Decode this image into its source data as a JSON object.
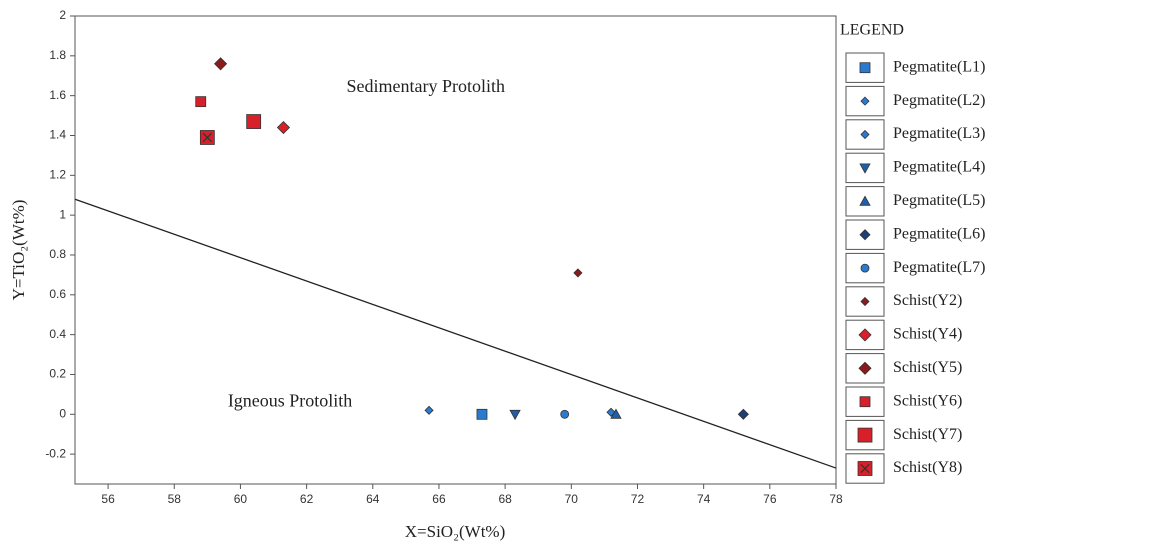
{
  "chart_data": {
    "type": "scatter",
    "xlabel": "X=SiO₂(Wt%)",
    "ylabel": "Y=TiO₂(Wt%)",
    "legend_title": "LEGEND",
    "legend": "right",
    "xlim": [
      55,
      78
    ],
    "xticks": [
      56,
      58,
      60,
      62,
      64,
      66,
      68,
      70,
      72,
      74,
      76,
      78
    ],
    "ylim": [
      -0.35,
      2
    ],
    "yticks": [
      -0.2,
      0,
      0.2,
      0.4,
      0.6,
      0.8,
      1,
      1.2,
      1.4,
      1.6,
      1.8,
      2
    ],
    "annotations": [
      {
        "text": "Sedimentary Protolith",
        "x": 65.6,
        "y": 1.64
      },
      {
        "text": "Igneous Protolith",
        "x": 61.5,
        "y": 0.06
      }
    ],
    "boundary": {
      "x": [
        55,
        78
      ],
      "y": [
        1.08,
        -0.27
      ]
    },
    "series": [
      {
        "name": "Pegmatite(L1)",
        "color": "#2a7bd0",
        "marker": "square",
        "size": 5,
        "x": [
          67.3
        ],
        "y": [
          0.0
        ]
      },
      {
        "name": "Pegmatite(L2)",
        "color": "#2a7bd0",
        "marker": "diamond",
        "size": 4,
        "x": [
          65.7
        ],
        "y": [
          0.02
        ]
      },
      {
        "name": "Pegmatite(L3)",
        "color": "#2a7bd0",
        "marker": "diamond",
        "size": 4,
        "x": [
          71.2
        ],
        "y": [
          0.01
        ]
      },
      {
        "name": "Pegmatite(L4)",
        "color": "#1f5fa8",
        "marker": "tri-down",
        "size": 5,
        "x": [
          68.3
        ],
        "y": [
          0.0
        ]
      },
      {
        "name": "Pegmatite(L5)",
        "color": "#1f5fa8",
        "marker": "tri-up",
        "size": 5,
        "x": [
          71.35
        ],
        "y": [
          0.0
        ]
      },
      {
        "name": "Pegmatite(L6)",
        "color": "#1c3f78",
        "marker": "diamond",
        "size": 5,
        "x": [
          75.2
        ],
        "y": [
          0.0
        ]
      },
      {
        "name": "Pegmatite(L7)",
        "color": "#2a7bd0",
        "marker": "circle",
        "size": 4,
        "x": [
          69.8
        ],
        "y": [
          0.0
        ]
      },
      {
        "name": "Schist(Y2)",
        "color": "#8b1a1a",
        "marker": "diamond",
        "size": 4,
        "x": [
          70.2
        ],
        "y": [
          0.71
        ]
      },
      {
        "name": "Schist(Y4)",
        "color": "#d8202a",
        "marker": "diamond",
        "size": 6,
        "x": [
          61.3
        ],
        "y": [
          1.44
        ]
      },
      {
        "name": "Schist(Y5)",
        "color": "#8b1a1a",
        "marker": "diamond",
        "size": 6,
        "x": [
          59.4
        ],
        "y": [
          1.76
        ]
      },
      {
        "name": "Schist(Y6)",
        "color": "#d8202a",
        "marker": "square",
        "size": 5,
        "x": [
          58.8
        ],
        "y": [
          1.57
        ]
      },
      {
        "name": "Schist(Y7)",
        "color": "#d8202a",
        "marker": "square",
        "size": 7,
        "x": [
          60.4
        ],
        "y": [
          1.47
        ]
      },
      {
        "name": "Schist(Y8)",
        "color": "#d8202a",
        "marker": "square-x",
        "size": 7,
        "x": [
          59.0
        ],
        "y": [
          1.39
        ]
      }
    ]
  }
}
